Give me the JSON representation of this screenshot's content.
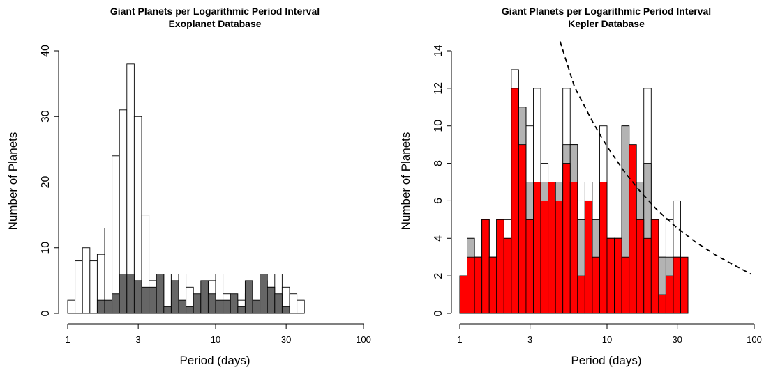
{
  "chart_data": [
    {
      "type": "bar",
      "title": "Giant Planets per Logarithmic Period Interval",
      "subtitle": "Exoplanet Database",
      "xlabel": "Period (days)",
      "ylabel": "Number of Planets",
      "x_scale": "log",
      "xlim": [
        1,
        100
      ],
      "ylim": [
        0,
        40
      ],
      "x_ticks": [
        "1",
        "3",
        "10",
        "30",
        "100"
      ],
      "y_ticks": [
        "0",
        "10",
        "20",
        "30",
        "40"
      ],
      "bin_edges": [
        1,
        1.122,
        1.259,
        1.413,
        1.585,
        1.778,
        1.995,
        2.239,
        2.512,
        2.818,
        3.162,
        3.548,
        3.981,
        4.467,
        5.012,
        5.623,
        6.31,
        7.079,
        7.943,
        8.913,
        10,
        11.22,
        12.59,
        14.13,
        15.85,
        17.78,
        19.95,
        22.39,
        25.12,
        28.18,
        31.62,
        35.48,
        39.81,
        44.67,
        50.12,
        56.23,
        63.1,
        70.79,
        79.43,
        89.13,
        100
      ],
      "series": [
        {
          "values": [
            2,
            8,
            10,
            8,
            9,
            13,
            24,
            31,
            38,
            30,
            15,
            5,
            6,
            6,
            6,
            6,
            4,
            2,
            3,
            5,
            6,
            3,
            2,
            2,
            3,
            1,
            5,
            4,
            6,
            4,
            3,
            2
          ],
          "bin_start_index": 0,
          "fill": "#ffffff"
        },
        {
          "values": [
            2,
            2,
            3,
            6,
            6,
            5,
            4,
            4,
            6,
            1,
            5,
            2,
            1,
            3,
            5,
            3,
            2,
            2,
            3,
            1,
            5,
            2,
            6,
            4,
            3,
            1
          ],
          "bin_start_index": 4,
          "fill": "#666666"
        }
      ]
    },
    {
      "type": "bar",
      "title": "Giant Planets per Logarithmic Period Interval",
      "subtitle": "Kepler Database",
      "xlabel": "Period (days)",
      "ylabel": "Number of Planets",
      "x_scale": "log",
      "xlim": [
        1,
        100
      ],
      "ylim": [
        0,
        14
      ],
      "x_ticks": [
        "1",
        "3",
        "10",
        "30",
        "100"
      ],
      "y_ticks": [
        "0",
        "2",
        "4",
        "6",
        "8",
        "10",
        "12",
        "14"
      ],
      "bin_edges": [
        1,
        1.122,
        1.259,
        1.413,
        1.585,
        1.778,
        1.995,
        2.239,
        2.512,
        2.818,
        3.162,
        3.548,
        3.981,
        4.467,
        5.012,
        5.623,
        6.31,
        7.079,
        7.943,
        8.913,
        10,
        11.22,
        12.59,
        14.13,
        15.85,
        17.78,
        19.95,
        22.39,
        25.12,
        28.18,
        31.62,
        35.48,
        39.81,
        44.67,
        50.12,
        56.23,
        63.1,
        70.79,
        79.43,
        89.13,
        100
      ],
      "series": [
        {
          "values": [
            2,
            4,
            3,
            5,
            3,
            5,
            5,
            13,
            11,
            10,
            12,
            8,
            7,
            7,
            12,
            9,
            6,
            7,
            5,
            10,
            4,
            4,
            10,
            7,
            7,
            12,
            2,
            3,
            5,
            6
          ],
          "bin_start_index": 0,
          "fill": "#ffffff"
        },
        {
          "values": [
            2,
            4,
            3,
            5,
            3,
            5,
            4,
            12,
            11,
            7,
            7,
            7,
            7,
            7,
            9,
            9,
            5,
            6,
            5,
            7,
            4,
            4,
            10,
            5,
            7,
            8,
            1,
            3,
            3,
            3
          ],
          "bin_start_index": 0,
          "fill": "#b3b3b3"
        },
        {
          "values": [
            2,
            3,
            3,
            5,
            3,
            5,
            4,
            12,
            9,
            5,
            7,
            6,
            7,
            6,
            8,
            7,
            2,
            6,
            3,
            7,
            4,
            4,
            3,
            9,
            5,
            4,
            5,
            1,
            2,
            3,
            3
          ],
          "bin_start_index": 0,
          "fill": "#ff0000"
        }
      ],
      "fit_curve": {
        "style": "dashed",
        "x": [
          4.8,
          6,
          8,
          10,
          13,
          17,
          22,
          30,
          40,
          55,
          70,
          95
        ],
        "y": [
          14.5,
          12.1,
          10.2,
          8.9,
          7.6,
          6.45,
          5.5,
          4.55,
          3.8,
          3.1,
          2.65,
          2.1
        ]
      }
    }
  ]
}
